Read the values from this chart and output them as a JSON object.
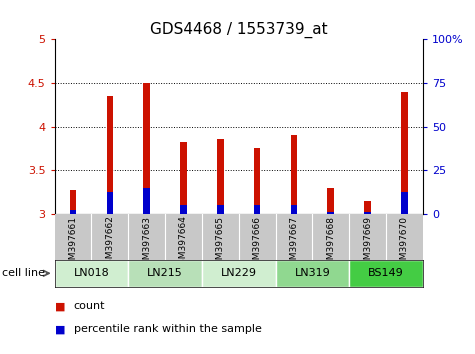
{
  "title": "GDS4468 / 1553739_at",
  "samples": [
    "GSM397661",
    "GSM397662",
    "GSM397663",
    "GSM397664",
    "GSM397665",
    "GSM397666",
    "GSM397667",
    "GSM397668",
    "GSM397669",
    "GSM397670"
  ],
  "count_values": [
    3.28,
    4.35,
    4.5,
    3.82,
    3.86,
    3.76,
    3.9,
    3.3,
    3.15,
    4.4
  ],
  "percentile_values": [
    3.05,
    3.25,
    3.3,
    3.1,
    3.1,
    3.1,
    3.1,
    3.03,
    3.03,
    3.25
  ],
  "cell_lines": [
    {
      "name": "LN018",
      "samples": [
        0,
        1
      ],
      "color": "#d0eed0"
    },
    {
      "name": "LN215",
      "samples": [
        2,
        3
      ],
      "color": "#b8e0b8"
    },
    {
      "name": "LN229",
      "samples": [
        4,
        5
      ],
      "color": "#d0eed0"
    },
    {
      "name": "LN319",
      "samples": [
        6,
        7
      ],
      "color": "#90d890"
    },
    {
      "name": "BS149",
      "samples": [
        8,
        9
      ],
      "color": "#44cc44"
    }
  ],
  "y_min": 3.0,
  "y_max": 5.0,
  "y_ticks": [
    3.0,
    3.5,
    4.0,
    4.5,
    5.0
  ],
  "y2_ticks": [
    0,
    25,
    50,
    75,
    100
  ],
  "bar_color": "#cc1100",
  "percentile_color": "#0000cc",
  "bar_width": 0.18,
  "axis_color_left": "#cc1100",
  "axis_color_right": "#0000cc",
  "gray_band_color": "#c8c8c8",
  "legend_items": [
    {
      "label": "count",
      "color": "#cc1100"
    },
    {
      "label": "percentile rank within the sample",
      "color": "#0000cc"
    }
  ],
  "cell_line_label": "cell line",
  "title_fontsize": 11,
  "tick_fontsize": 8,
  "sample_fontsize": 6.5,
  "cell_fontsize": 8,
  "legend_fontsize": 8
}
